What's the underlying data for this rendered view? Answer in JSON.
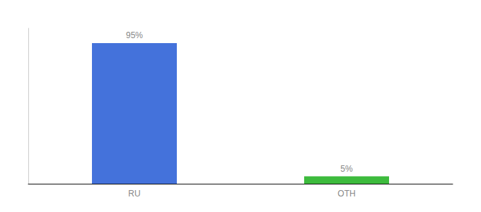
{
  "chart_data": {
    "type": "bar",
    "categories": [
      "RU",
      "OTH"
    ],
    "values": [
      95,
      5
    ],
    "value_labels": [
      "95%",
      "5%"
    ],
    "colors": [
      "#4472db",
      "#3dbb3d"
    ],
    "ylim": [
      0,
      105
    ],
    "data_labels": true,
    "tick_labels": "x",
    "grid": false
  }
}
